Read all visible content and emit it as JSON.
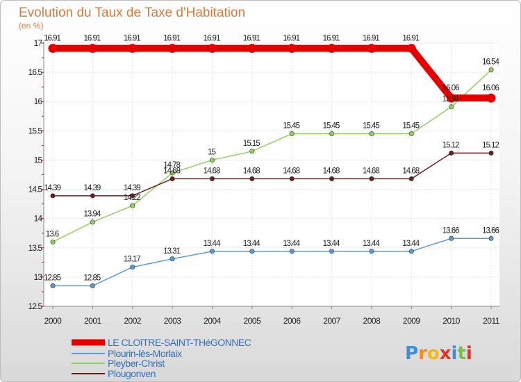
{
  "chart_data": {
    "type": "line",
    "title": "Evolution du Taux de Taxe d'Habitation",
    "ylabel": "(en %)",
    "xlabel": "",
    "x": [
      "2000",
      "2001",
      "2002",
      "2003",
      "2004",
      "2005",
      "2006",
      "2007",
      "2008",
      "2009",
      "2010",
      "2011"
    ],
    "ylim": [
      12.5,
      17
    ],
    "yticks": [
      "12.5",
      "13",
      "13.5",
      "14",
      "14.5",
      "15",
      "15.5",
      "16",
      "16.5",
      "17"
    ],
    "grid": true,
    "legend": "bottom-left",
    "series": [
      {
        "name": "LE CLOîTRE-SAINT-THéGONNEC",
        "color": "#e50000",
        "values": [
          16.91,
          16.91,
          16.91,
          16.91,
          16.91,
          16.91,
          16.91,
          16.91,
          16.91,
          16.91,
          16.06,
          16.06
        ],
        "labels": [
          "16.91",
          "16.91",
          "16.91",
          "16.91",
          "16.91",
          "16.91",
          "16.91",
          "16.91",
          "16.91",
          "16.91",
          "16.06",
          "16.06"
        ]
      },
      {
        "name": "Plourin-lès-Morlaix",
        "color": "#5b9bd5",
        "values": [
          12.85,
          12.85,
          13.17,
          13.31,
          13.44,
          13.44,
          13.44,
          13.44,
          13.44,
          13.44,
          13.66,
          13.66
        ],
        "labels": [
          "12.85",
          "12.85",
          "13.17",
          "13.31",
          "13.44",
          "13.44",
          "13.44",
          "13.44",
          "13.44",
          "13.44",
          "13.66",
          "13.66"
        ]
      },
      {
        "name": "Pleyber-Christ",
        "color": "#8ed160",
        "values": [
          13.6,
          13.94,
          14.22,
          14.78,
          15,
          15.15,
          15.45,
          15.45,
          15.45,
          15.45,
          15.91,
          16.54
        ],
        "labels": [
          "13.6",
          "13.94",
          "14.22",
          "14.78",
          "15",
          "15.15",
          "15.45",
          "15.45",
          "15.45",
          "15.45",
          "15.91",
          "16.54"
        ]
      },
      {
        "name": "Plougonven",
        "color": "#6b1e1e",
        "values": [
          14.39,
          14.39,
          14.39,
          14.68,
          14.68,
          14.68,
          14.68,
          14.68,
          14.68,
          14.68,
          15.12,
          15.12
        ],
        "labels": [
          "14.39",
          "14.39",
          "14.39",
          "14.68",
          "14.68",
          "14.68",
          "14.68",
          "14.68",
          "14.68",
          "14.68",
          "15.12",
          "15.12"
        ]
      }
    ]
  },
  "brand": {
    "letters": [
      "P",
      "r",
      "o",
      "x",
      "i",
      "t",
      "i"
    ],
    "colors": [
      "#3a8fd8",
      "#f28c1a",
      "#f2b81a",
      "#e0342a",
      "#3a8fd8",
      "#7cc241",
      "#e0342a"
    ]
  }
}
